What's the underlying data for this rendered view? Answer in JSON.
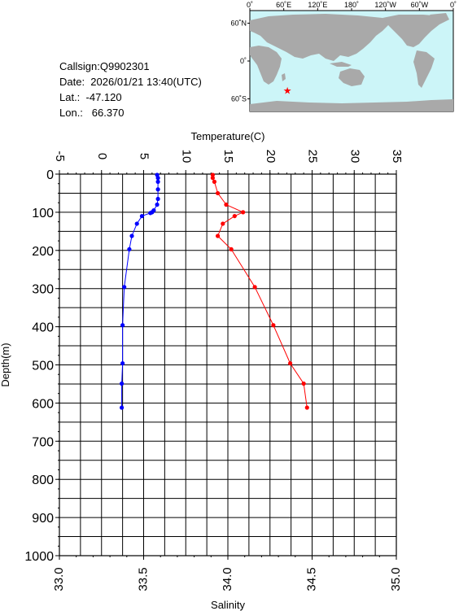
{
  "info": {
    "callsign": "Callsign:Q9902301",
    "date": "Date:  2026/01/21 13:40(UTC)",
    "lat": "Lat.:  -47.120",
    "lon": "Lon.:   66.370"
  },
  "map": {
    "lon_labels": [
      "0˚",
      "60˚E",
      "120˚E",
      "180˚",
      "120˚W",
      "60˚W",
      "0˚"
    ],
    "lat_labels": [
      "60˚N",
      "0˚",
      "60˚S"
    ],
    "station": {
      "lat": -47.12,
      "lon": 66.37
    },
    "ocean_color": "#ccf5f8",
    "land_color": "#a9a9a9",
    "marker_color": "#ff0000"
  },
  "chart_data": {
    "type": "line",
    "ylabel": "Depth(m)",
    "ylim": [
      1000,
      0
    ],
    "yticks": [
      "0",
      "100",
      "200",
      "300",
      "400",
      "500",
      "600",
      "700",
      "800",
      "900",
      "1000"
    ],
    "top_axis": {
      "label": "Temperature(C)",
      "lim": [
        -5,
        35
      ],
      "ticks": [
        "-5",
        "0",
        "5",
        "10",
        "15",
        "20",
        "25",
        "30",
        "35"
      ]
    },
    "bottom_axis": {
      "label": "Salinity",
      "lim": [
        33.0,
        35.0
      ],
      "ticks": [
        "33.0",
        "33.5",
        "34.0",
        "34.5",
        "35.0"
      ]
    },
    "grid": true,
    "series": [
      {
        "axis": "top",
        "color": "#0000ff",
        "points": [
          [
            6.6,
            2
          ],
          [
            6.7,
            10
          ],
          [
            6.7,
            20
          ],
          [
            6.7,
            40
          ],
          [
            6.7,
            65
          ],
          [
            6.6,
            80
          ],
          [
            6.2,
            95
          ],
          [
            6.0,
            100
          ],
          [
            5.8,
            102
          ],
          [
            4.8,
            110
          ],
          [
            4.2,
            130
          ],
          [
            3.6,
            162
          ],
          [
            3.3,
            197
          ],
          [
            2.7,
            296
          ],
          [
            2.5,
            396
          ],
          [
            2.5,
            496
          ],
          [
            2.4,
            549
          ],
          [
            2.4,
            612
          ]
        ]
      },
      {
        "axis": "bottom",
        "color": "#ff0000",
        "points": [
          [
            33.91,
            2
          ],
          [
            33.91,
            10
          ],
          [
            33.92,
            20
          ],
          [
            33.94,
            50
          ],
          [
            33.99,
            80
          ],
          [
            34.09,
            100
          ],
          [
            34.04,
            110
          ],
          [
            33.97,
            130
          ],
          [
            33.94,
            162
          ],
          [
            34.02,
            197
          ],
          [
            34.16,
            296
          ],
          [
            34.27,
            396
          ],
          [
            34.37,
            496
          ],
          [
            34.45,
            549
          ],
          [
            34.47,
            612
          ]
        ]
      }
    ]
  }
}
